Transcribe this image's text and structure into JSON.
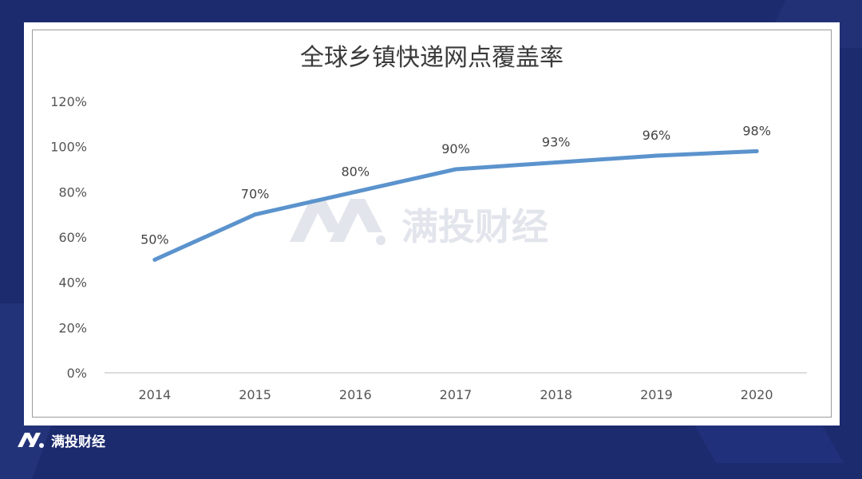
{
  "brand": {
    "name": "满投财经",
    "watermark": "满投财经"
  },
  "colors": {
    "background": "#1c2a6e",
    "line": "#5b93cd",
    "watermark": "#e3e5ec"
  },
  "chart_data": {
    "type": "line",
    "title": "全球乡镇快递网点覆盖率",
    "xlabel": "",
    "ylabel": "",
    "categories": [
      "2014",
      "2015",
      "2016",
      "2017",
      "2018",
      "2019",
      "2020"
    ],
    "series": [
      {
        "values": [
          50,
          70,
          80,
          90,
          93,
          96,
          98
        ],
        "labels": [
          "50%",
          "70%",
          "80%",
          "90%",
          "93%",
          "96%",
          "98%"
        ]
      }
    ],
    "ylim": [
      0,
      120
    ],
    "yticks": [
      "0%",
      "20%",
      "40%",
      "60%",
      "80%",
      "100%",
      "120%"
    ],
    "grid": false,
    "legend": "none"
  }
}
